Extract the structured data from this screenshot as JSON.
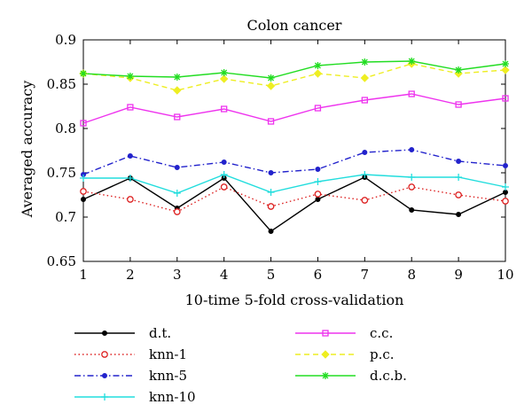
{
  "chart_data": {
    "type": "line",
    "title": "Colon cancer",
    "xlabel": "10-time 5-fold cross-validation",
    "ylabel": "Averaged accuracy",
    "x": [
      1,
      2,
      3,
      4,
      5,
      6,
      7,
      8,
      9,
      10
    ],
    "xlim": [
      1,
      10
    ],
    "ylim": [
      0.65,
      0.9
    ],
    "yticks": [
      0.65,
      0.7,
      0.75,
      0.8,
      0.85,
      0.9
    ],
    "ytick_labels": [
      "0.65",
      "0.7",
      "0.75",
      "0.8",
      "0.85",
      "0.9"
    ],
    "xtick_labels": [
      "1",
      "2",
      "3",
      "4",
      "5",
      "6",
      "7",
      "8",
      "9",
      "10"
    ],
    "grid": false,
    "legend_position": "below-plot",
    "series": [
      {
        "name": "d.t.",
        "color": "#000000",
        "dash": "solid",
        "marker": "dot",
        "values": [
          0.72,
          0.744,
          0.71,
          0.744,
          0.684,
          0.72,
          0.745,
          0.708,
          0.703,
          0.728
        ]
      },
      {
        "name": "knn-1",
        "color": "#dd2222",
        "dash": "dotted",
        "marker": "circle",
        "values": [
          0.729,
          0.72,
          0.706,
          0.734,
          0.712,
          0.726,
          0.719,
          0.734,
          0.725,
          0.718
        ]
      },
      {
        "name": "knn-5",
        "color": "#2222cc",
        "dash": "dashdot",
        "marker": "dot",
        "values": [
          0.748,
          0.769,
          0.756,
          0.762,
          0.75,
          0.754,
          0.773,
          0.776,
          0.763,
          0.758
        ]
      },
      {
        "name": "knn-10",
        "color": "#22dddd",
        "dash": "solid",
        "marker": "plus",
        "values": [
          0.744,
          0.744,
          0.727,
          0.748,
          0.728,
          0.74,
          0.748,
          0.745,
          0.745,
          0.734
        ]
      },
      {
        "name": "c.c.",
        "color": "#ee33ee",
        "dash": "solid",
        "marker": "square",
        "values": [
          0.806,
          0.824,
          0.813,
          0.822,
          0.808,
          0.823,
          0.832,
          0.839,
          0.827,
          0.834
        ]
      },
      {
        "name": "p.c.",
        "color": "#eeee22",
        "dash": "dashed",
        "marker": "diamond",
        "values": [
          0.862,
          0.857,
          0.843,
          0.856,
          0.848,
          0.862,
          0.857,
          0.873,
          0.862,
          0.866
        ]
      },
      {
        "name": "d.c.b.",
        "color": "#22dd22",
        "dash": "solid",
        "marker": "star",
        "values": [
          0.862,
          0.859,
          0.858,
          0.863,
          0.857,
          0.871,
          0.875,
          0.876,
          0.866,
          0.873
        ]
      }
    ]
  }
}
